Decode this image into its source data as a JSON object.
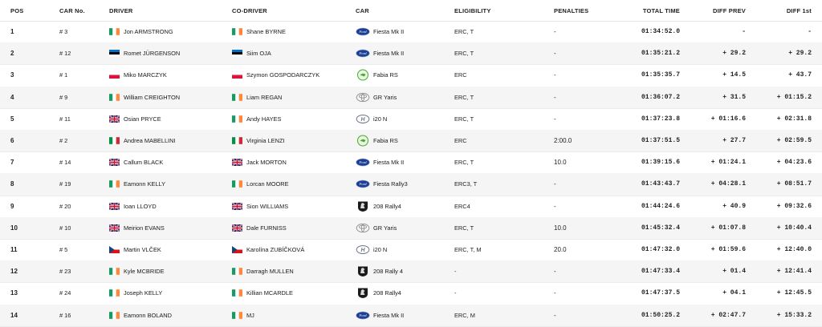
{
  "columns": {
    "pos": "POS",
    "car_no": "CAR No.",
    "driver": "DRIVER",
    "co_driver": "CO-DRIVER",
    "car": "CAR",
    "eligibility": "ELIGIBILITY",
    "penalties": "PENALTIES",
    "total_time": "TOTAL TIME",
    "diff_prev": "DIFF PREV",
    "diff_first": "DIFF 1st"
  },
  "rows": [
    {
      "pos": "1",
      "car_no": "# 3",
      "driver": "Jon ARMSTRONG",
      "driver_flag": "ireland-flag-icon",
      "codriver": "Shane BYRNE",
      "codriver_flag": "ireland-flag-icon",
      "car_logo": "ford-logo-icon",
      "car": "Fiesta Mk II",
      "eligibility": "ERC, T",
      "penalties": "-",
      "total_time": "01:34:52.0",
      "diff_prev": "-",
      "diff_first": "-"
    },
    {
      "pos": "2",
      "car_no": "# 12",
      "driver": "Romet JÜRGENSON",
      "driver_flag": "estonia-flag-icon",
      "codriver": "Siim OJA",
      "codriver_flag": "estonia-flag-icon",
      "car_logo": "ford-logo-icon",
      "car": "Fiesta Mk II",
      "eligibility": "ERC, T",
      "penalties": "-",
      "total_time": "01:35:21.2",
      "diff_prev": "+ 29.2",
      "diff_first": "+ 29.2"
    },
    {
      "pos": "3",
      "car_no": "# 1",
      "driver": "Miko MARCZYK",
      "driver_flag": "poland-flag-icon",
      "codriver": "Szymon GOSPODARCZYK",
      "codriver_flag": "poland-flag-icon",
      "car_logo": "skoda-logo-icon",
      "car": "Fabia RS",
      "eligibility": "ERC",
      "penalties": "-",
      "total_time": "01:35:35.7",
      "diff_prev": "+ 14.5",
      "diff_first": "+ 43.7"
    },
    {
      "pos": "4",
      "car_no": "# 9",
      "driver": "William CREIGHTON",
      "driver_flag": "ireland-flag-icon",
      "codriver": "Liam REGAN",
      "codriver_flag": "ireland-flag-icon",
      "car_logo": "toyota-logo-icon",
      "car": "GR Yaris",
      "eligibility": "ERC, T",
      "penalties": "-",
      "total_time": "01:36:07.2",
      "diff_prev": "+ 31.5",
      "diff_first": "+ 01:15.2"
    },
    {
      "pos": "5",
      "car_no": "# 11",
      "driver": "Osian PRYCE",
      "driver_flag": "uk-flag-icon",
      "codriver": "Andy HAYES",
      "codriver_flag": "ireland-flag-icon",
      "car_logo": "hyundai-logo-icon",
      "car": "i20 N",
      "eligibility": "ERC, T",
      "penalties": "-",
      "total_time": "01:37:23.8",
      "diff_prev": "+ 01:16.6",
      "diff_first": "+ 02:31.8"
    },
    {
      "pos": "6",
      "car_no": "# 2",
      "driver": "Andrea MABELLINI",
      "driver_flag": "italy-flag-icon",
      "codriver": "Virginia LENZI",
      "codriver_flag": "italy-flag-icon",
      "car_logo": "skoda-logo-icon",
      "car": "Fabia RS",
      "eligibility": "ERC",
      "penalties": "2:00.0",
      "total_time": "01:37:51.5",
      "diff_prev": "+ 27.7",
      "diff_first": "+ 02:59.5"
    },
    {
      "pos": "7",
      "car_no": "# 14",
      "driver": "Callum BLACK",
      "driver_flag": "uk-flag-icon",
      "codriver": "Jack MORTON",
      "codriver_flag": "uk-flag-icon",
      "car_logo": "ford-logo-icon",
      "car": "Fiesta Mk II",
      "eligibility": "ERC, T",
      "penalties": "10.0",
      "total_time": "01:39:15.6",
      "diff_prev": "+ 01:24.1",
      "diff_first": "+ 04:23.6"
    },
    {
      "pos": "8",
      "car_no": "# 19",
      "driver": "Eamonn KELLY",
      "driver_flag": "ireland-flag-icon",
      "codriver": "Lorcan MOORE",
      "codriver_flag": "ireland-flag-icon",
      "car_logo": "ford-logo-icon",
      "car": "Fiesta Rally3",
      "eligibility": "ERC3, T",
      "penalties": "-",
      "total_time": "01:43:43.7",
      "diff_prev": "+ 04:28.1",
      "diff_first": "+ 08:51.7"
    },
    {
      "pos": "9",
      "car_no": "# 20",
      "driver": "Ioan LLOYD",
      "driver_flag": "uk-flag-icon",
      "codriver": "Sion WILLIAMS",
      "codriver_flag": "uk-flag-icon",
      "car_logo": "peugeot-logo-icon",
      "car": "208 Rally4",
      "eligibility": "ERC4",
      "penalties": "-",
      "total_time": "01:44:24.6",
      "diff_prev": "+ 40.9",
      "diff_first": "+ 09:32.6"
    },
    {
      "pos": "10",
      "car_no": "# 10",
      "driver": "Meirion EVANS",
      "driver_flag": "uk-flag-icon",
      "codriver": "Dale FURNISS",
      "codriver_flag": "uk-flag-icon",
      "car_logo": "toyota-logo-icon",
      "car": "GR Yaris",
      "eligibility": "ERC, T",
      "penalties": "10.0",
      "total_time": "01:45:32.4",
      "diff_prev": "+ 01:07.8",
      "diff_first": "+ 10:40.4"
    },
    {
      "pos": "11",
      "car_no": "# 5",
      "driver": "Martin VLČEK",
      "driver_flag": "czech-flag-icon",
      "codriver": "Karolína ZUBÍČKOVÁ",
      "codriver_flag": "czech-flag-icon",
      "car_logo": "hyundai-logo-icon",
      "car": "i20 N",
      "eligibility": "ERC, T, M",
      "penalties": "20.0",
      "total_time": "01:47:32.0",
      "diff_prev": "+ 01:59.6",
      "diff_first": "+ 12:40.0"
    },
    {
      "pos": "12",
      "car_no": "# 23",
      "driver": "Kyle MCBRIDE",
      "driver_flag": "ireland-flag-icon",
      "codriver": "Darragh MULLEN",
      "codriver_flag": "ireland-flag-icon",
      "car_logo": "peugeot-logo-icon",
      "car": "208 Rally 4",
      "eligibility": "-",
      "penalties": "-",
      "total_time": "01:47:33.4",
      "diff_prev": "+ 01.4",
      "diff_first": "+ 12:41.4"
    },
    {
      "pos": "13",
      "car_no": "# 24",
      "driver": "Joseph KELLY",
      "driver_flag": "ireland-flag-icon",
      "codriver": "Killian MCARDLE",
      "codriver_flag": "ireland-flag-icon",
      "car_logo": "peugeot-logo-icon",
      "car": "208 Rally4",
      "eligibility": "-",
      "penalties": "-",
      "total_time": "01:47:37.5",
      "diff_prev": "+ 04.1",
      "diff_first": "+ 12:45.5"
    },
    {
      "pos": "14",
      "car_no": "# 16",
      "driver": "Eamonn BOLAND",
      "driver_flag": "ireland-flag-icon",
      "codriver": "MJ",
      "codriver_flag": "ireland-flag-icon",
      "car_logo": "ford-logo-icon",
      "car": "Fiesta Mk II",
      "eligibility": "ERC, M",
      "penalties": "-",
      "total_time": "01:50:25.2",
      "diff_prev": "+ 02:47.7",
      "diff_first": "+ 15:33.2"
    }
  ],
  "colors": {
    "row_alt_bg": "#f5f5f6",
    "divider": "#ececec",
    "text": "#222222",
    "ford_blue": "#1c3f94",
    "skoda_green": "#4ba82e"
  }
}
